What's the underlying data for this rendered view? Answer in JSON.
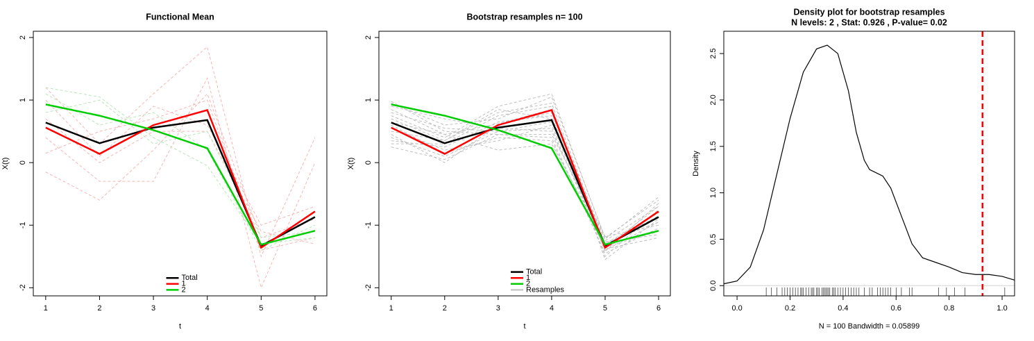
{
  "chart_data": [
    {
      "type": "line",
      "title": "Functional Mean",
      "xlabel": "t",
      "ylabel": "X(t)",
      "x": [
        1,
        2,
        3,
        4,
        5,
        6
      ],
      "xlim": [
        0.77,
        6.22
      ],
      "ylim": [
        -2.13,
        2.1
      ],
      "xticks": [
        1,
        2,
        3,
        4,
        5,
        6
      ],
      "yticks": [
        -2,
        -1,
        0,
        1,
        2
      ],
      "legend": "bottom",
      "curves": [
        {
          "color": "#f6b4b4",
          "values": [
            1.2,
            0.3,
            1.1,
            1.85,
            -1.5,
            0.4
          ]
        },
        {
          "color": "#f6b4b4",
          "values": [
            0.4,
            -0.3,
            -0.3,
            1.35,
            -2.0,
            0.0
          ]
        },
        {
          "color": "#f6b4b4",
          "values": [
            -0.15,
            -0.6,
            0.2,
            1.1,
            -1.2,
            -0.9
          ]
        },
        {
          "color": "#f6b4b4",
          "values": [
            1.0,
            0.1,
            0.9,
            0.6,
            -1.0,
            -0.7
          ]
        },
        {
          "color": "#f6b4b4",
          "values": [
            0.15,
            0.5,
            0.7,
            1.0,
            -1.4,
            -1.2
          ]
        },
        {
          "color": "#f6b4b4",
          "values": [
            0.7,
            0.0,
            0.5,
            0.5,
            -1.1,
            -1.3
          ]
        },
        {
          "color": "#b8e6b8",
          "values": [
            1.2,
            1.05,
            0.4,
            -0.05,
            -1.3,
            -1.2
          ]
        },
        {
          "color": "#b8e6b8",
          "values": [
            0.8,
            1.0,
            0.3,
            0.5,
            -1.2,
            -1.1
          ]
        },
        {
          "color": "#b8e6b8",
          "values": [
            1.1,
            0.6,
            0.8,
            0.2,
            -1.4,
            -1.0
          ]
        }
      ],
      "series": [
        {
          "name": "Total",
          "color": "#000000",
          "values": [
            0.64,
            0.31,
            0.56,
            0.68,
            -1.33,
            -0.87
          ]
        },
        {
          "name": "1",
          "color": "#ff0000",
          "values": [
            0.56,
            0.14,
            0.6,
            0.84,
            -1.36,
            -0.78
          ]
        },
        {
          "name": "2",
          "color": "#00cd00",
          "values": [
            0.93,
            0.75,
            0.52,
            0.23,
            -1.31,
            -1.09
          ]
        }
      ]
    },
    {
      "type": "line",
      "title": "Bootstrap resamples n= 100",
      "xlabel": "t",
      "ylabel": "X(t)",
      "x": [
        1,
        2,
        3,
        4,
        5,
        6
      ],
      "xlim": [
        0.77,
        6.22
      ],
      "ylim": [
        -2.13,
        2.1
      ],
      "xticks": [
        1,
        2,
        3,
        4,
        5,
        6
      ],
      "yticks": [
        -2,
        -1,
        0,
        1,
        2
      ],
      "legend": "bottom",
      "series": [
        {
          "name": "Total",
          "color": "#000000",
          "values": [
            0.64,
            0.31,
            0.56,
            0.68,
            -1.33,
            -0.87
          ]
        },
        {
          "name": "1",
          "color": "#ff0000",
          "values": [
            0.56,
            0.14,
            0.6,
            0.84,
            -1.36,
            -0.78
          ]
        },
        {
          "name": "2",
          "color": "#00cd00",
          "values": [
            0.93,
            0.75,
            0.52,
            0.23,
            -1.31,
            -1.09
          ]
        }
      ],
      "resamples": {
        "name": "Resamples",
        "color": "#bebebe",
        "curves": [
          [
            0.85,
            0.45,
            0.62,
            0.85,
            -1.25,
            -0.7
          ],
          [
            0.4,
            0.1,
            0.5,
            0.55,
            -1.4,
            -0.95
          ],
          [
            0.95,
            0.6,
            0.7,
            1.05,
            -1.2,
            -0.6
          ],
          [
            0.25,
            0.05,
            0.45,
            0.4,
            -1.45,
            -1.05
          ],
          [
            0.7,
            0.35,
            0.8,
            0.95,
            -1.3,
            -0.8
          ],
          [
            0.55,
            0.2,
            0.35,
            0.6,
            -1.35,
            -1.1
          ],
          [
            0.9,
            0.7,
            0.55,
            0.5,
            -1.28,
            -0.95
          ],
          [
            0.35,
            0.25,
            0.65,
            0.75,
            -1.5,
            -0.75
          ],
          [
            0.75,
            0.4,
            0.9,
            1.1,
            -1.22,
            -0.55
          ],
          [
            0.6,
            0.15,
            0.4,
            0.35,
            -1.38,
            -1.2
          ],
          [
            0.8,
            0.55,
            0.5,
            0.65,
            -1.32,
            -0.85
          ],
          [
            0.45,
            0.0,
            0.6,
            0.8,
            -1.42,
            -0.65
          ],
          [
            0.98,
            0.5,
            0.45,
            0.45,
            -1.18,
            -1.0
          ],
          [
            0.3,
            0.3,
            0.75,
            0.9,
            -1.55,
            -0.9
          ],
          [
            0.65,
            0.45,
            0.2,
            0.3,
            -1.27,
            -1.15
          ],
          [
            0.5,
            0.35,
            0.85,
            0.7,
            -1.36,
            -0.7
          ]
        ]
      }
    },
    {
      "type": "density",
      "title": "Density plot for bootstrap resamples",
      "subtitle": "N levels: 2 , Stat: 0.926 , P-value= 0.02",
      "xlabel": "N = 100   Bandwidth = 0.05899",
      "ylabel": "Density",
      "xlim": [
        -0.05,
        1.047
      ],
      "ylim": [
        -0.11,
        2.74
      ],
      "xticks": [
        {
          "value": 0,
          "label": "0.0"
        },
        {
          "value": 0.2,
          "label": "0.2"
        },
        {
          "value": 0.4,
          "label": "0.4"
        },
        {
          "value": 0.6,
          "label": "0.6"
        },
        {
          "value": 0.8,
          "label": "0.8"
        },
        {
          "value": 1,
          "label": "1.0"
        }
      ],
      "yticks": [
        {
          "value": 0,
          "label": "0.0"
        },
        {
          "value": 0.5,
          "label": "0.5"
        },
        {
          "value": 1,
          "label": "1.0"
        },
        {
          "value": 1.5,
          "label": "1.5"
        },
        {
          "value": 2,
          "label": "2.0"
        },
        {
          "value": 2.5,
          "label": "2.5"
        }
      ],
      "color": "#000000",
      "x": [
        -0.05,
        0,
        0.05,
        0.1,
        0.15,
        0.2,
        0.25,
        0.3,
        0.34,
        0.38,
        0.42,
        0.45,
        0.48,
        0.5,
        0.55,
        0.58,
        0.62,
        0.66,
        0.7,
        0.75,
        0.8,
        0.85,
        0.9,
        0.95,
        1.0,
        1.047
      ],
      "values": [
        0.02,
        0.05,
        0.2,
        0.6,
        1.2,
        1.8,
        2.3,
        2.55,
        2.59,
        2.5,
        2.1,
        1.65,
        1.35,
        1.25,
        1.18,
        1.05,
        0.75,
        0.45,
        0.3,
        0.25,
        0.2,
        0.14,
        0.12,
        0.12,
        0.1,
        0.06
      ],
      "vline": {
        "value": 0.926,
        "color": "#ff0000"
      },
      "rug": [
        0.11,
        0.13,
        0.15,
        0.17,
        0.18,
        0.19,
        0.2,
        0.21,
        0.22,
        0.23,
        0.24,
        0.245,
        0.25,
        0.26,
        0.27,
        0.28,
        0.285,
        0.29,
        0.3,
        0.305,
        0.31,
        0.32,
        0.325,
        0.33,
        0.335,
        0.34,
        0.345,
        0.35,
        0.36,
        0.365,
        0.37,
        0.38,
        0.39,
        0.4,
        0.41,
        0.42,
        0.43,
        0.44,
        0.45,
        0.46,
        0.48,
        0.5,
        0.51,
        0.53,
        0.54,
        0.55,
        0.56,
        0.57,
        0.58,
        0.6,
        0.62,
        0.65,
        0.66,
        0.76,
        0.79,
        0.82,
        0.86,
        1.01
      ]
    }
  ]
}
